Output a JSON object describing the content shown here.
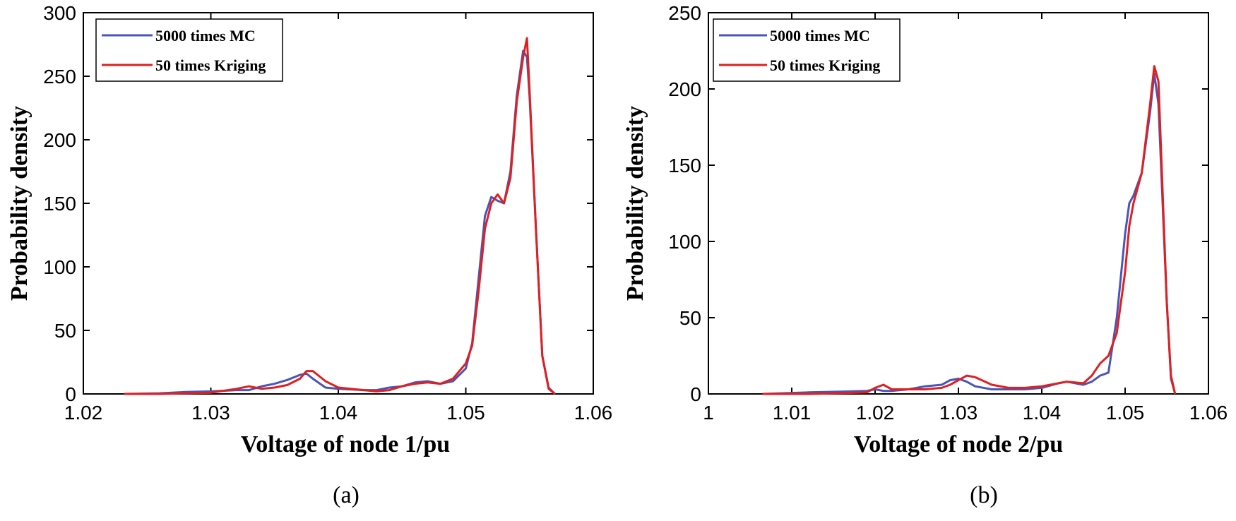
{
  "chart_data": [
    {
      "type": "line",
      "panel_label": "(a)",
      "xlabel": "Voltage of node 1/pu",
      "ylabel": "Probability density",
      "xlim": [
        1.02,
        1.06
      ],
      "ylim": [
        0,
        300
      ],
      "xticks": [
        1.02,
        1.03,
        1.04,
        1.05,
        1.06
      ],
      "yticks": [
        0,
        50,
        100,
        150,
        200,
        250,
        300
      ],
      "xtick_labels": [
        "1.02",
        "1.03",
        "1.04",
        "1.05",
        "1.06"
      ],
      "ytick_labels": [
        "0",
        "50",
        "100",
        "150",
        "200",
        "250",
        "300"
      ],
      "legend_position": "top-left",
      "series": [
        {
          "name": "5000 times MC",
          "color": "#4a55b8",
          "x": [
            1.0232,
            1.026,
            1.028,
            1.03,
            1.032,
            1.033,
            1.034,
            1.035,
            1.036,
            1.037,
            1.0375,
            1.038,
            1.039,
            1.04,
            1.042,
            1.043,
            1.044,
            1.045,
            1.046,
            1.047,
            1.048,
            1.049,
            1.05,
            1.0505,
            1.051,
            1.0515,
            1.052,
            1.0525,
            1.053,
            1.0535,
            1.054,
            1.0545,
            1.0548,
            1.055,
            1.0555,
            1.056,
            1.0565,
            1.057
          ],
          "y": [
            0,
            0.5,
            1.5,
            2,
            3,
            3,
            6,
            8,
            11,
            15,
            16,
            12,
            5,
            4,
            3,
            3,
            5,
            6,
            9,
            10,
            8,
            10,
            20,
            40,
            90,
            140,
            155,
            152,
            150,
            175,
            235,
            270,
            265,
            235,
            130,
            30,
            5,
            0
          ]
        },
        {
          "name": "50 times Kriging",
          "color": "#e02020",
          "x": [
            1.0232,
            1.026,
            1.028,
            1.03,
            1.032,
            1.033,
            1.034,
            1.035,
            1.036,
            1.037,
            1.0375,
            1.038,
            1.039,
            1.04,
            1.042,
            1.043,
            1.044,
            1.045,
            1.046,
            1.047,
            1.048,
            1.049,
            1.05,
            1.0505,
            1.051,
            1.0515,
            1.052,
            1.0525,
            1.053,
            1.0535,
            1.054,
            1.0545,
            1.0548,
            1.055,
            1.0555,
            1.056,
            1.0565,
            1.057
          ],
          "y": [
            0,
            0,
            0.5,
            1,
            4,
            6,
            4,
            5,
            7,
            12,
            18,
            18,
            10,
            5,
            3,
            2,
            3,
            6,
            8,
            9,
            8,
            12,
            24,
            38,
            80,
            130,
            150,
            157,
            150,
            170,
            230,
            265,
            280,
            240,
            130,
            30,
            4,
            0
          ]
        }
      ]
    },
    {
      "type": "line",
      "panel_label": "(b)",
      "xlabel": "Voltage of node 2/pu",
      "ylabel": "Probability density",
      "xlim": [
        1.0,
        1.06
      ],
      "ylim": [
        0,
        250
      ],
      "xticks": [
        1.0,
        1.01,
        1.02,
        1.03,
        1.04,
        1.05,
        1.06
      ],
      "yticks": [
        0,
        50,
        100,
        150,
        200,
        250
      ],
      "xtick_labels": [
        "1",
        "1.01",
        "1.02",
        "1.03",
        "1.04",
        "1.05",
        "1.06"
      ],
      "ytick_labels": [
        "0",
        "50",
        "100",
        "150",
        "200",
        "250"
      ],
      "legend_position": "top-left",
      "series": [
        {
          "name": "5000 times MC",
          "color": "#4a55b8",
          "x": [
            1.0065,
            1.012,
            1.016,
            1.019,
            1.02,
            1.021,
            1.022,
            1.024,
            1.026,
            1.028,
            1.029,
            1.03,
            1.031,
            1.032,
            1.034,
            1.036,
            1.038,
            1.04,
            1.042,
            1.043,
            1.045,
            1.046,
            1.047,
            1.048,
            1.049,
            1.05,
            1.0505,
            1.051,
            1.052,
            1.053,
            1.0535,
            1.054,
            1.055,
            1.0555,
            1.056
          ],
          "y": [
            0,
            1,
            1.5,
            2,
            3,
            2,
            2,
            3,
            5,
            6,
            9,
            10,
            8,
            5,
            3,
            3,
            3,
            4,
            7,
            8,
            6,
            8,
            12,
            14,
            50,
            105,
            125,
            130,
            145,
            185,
            210,
            190,
            60,
            10,
            0
          ]
        },
        {
          "name": "50 times Kriging",
          "color": "#e02020",
          "x": [
            1.0065,
            1.012,
            1.016,
            1.019,
            1.02,
            1.021,
            1.022,
            1.024,
            1.026,
            1.028,
            1.029,
            1.03,
            1.031,
            1.032,
            1.034,
            1.036,
            1.038,
            1.04,
            1.042,
            1.043,
            1.045,
            1.046,
            1.047,
            1.048,
            1.049,
            1.05,
            1.0505,
            1.051,
            1.052,
            1.053,
            1.0535,
            1.054,
            1.055,
            1.0555,
            1.056
          ],
          "y": [
            0,
            0,
            0.5,
            1,
            4,
            6,
            3,
            3,
            3,
            4,
            6,
            9,
            12,
            11,
            6,
            4,
            4,
            5,
            7,
            8,
            7,
            12,
            20,
            25,
            40,
            80,
            110,
            125,
            145,
            190,
            215,
            205,
            60,
            12,
            0
          ]
        }
      ]
    }
  ]
}
